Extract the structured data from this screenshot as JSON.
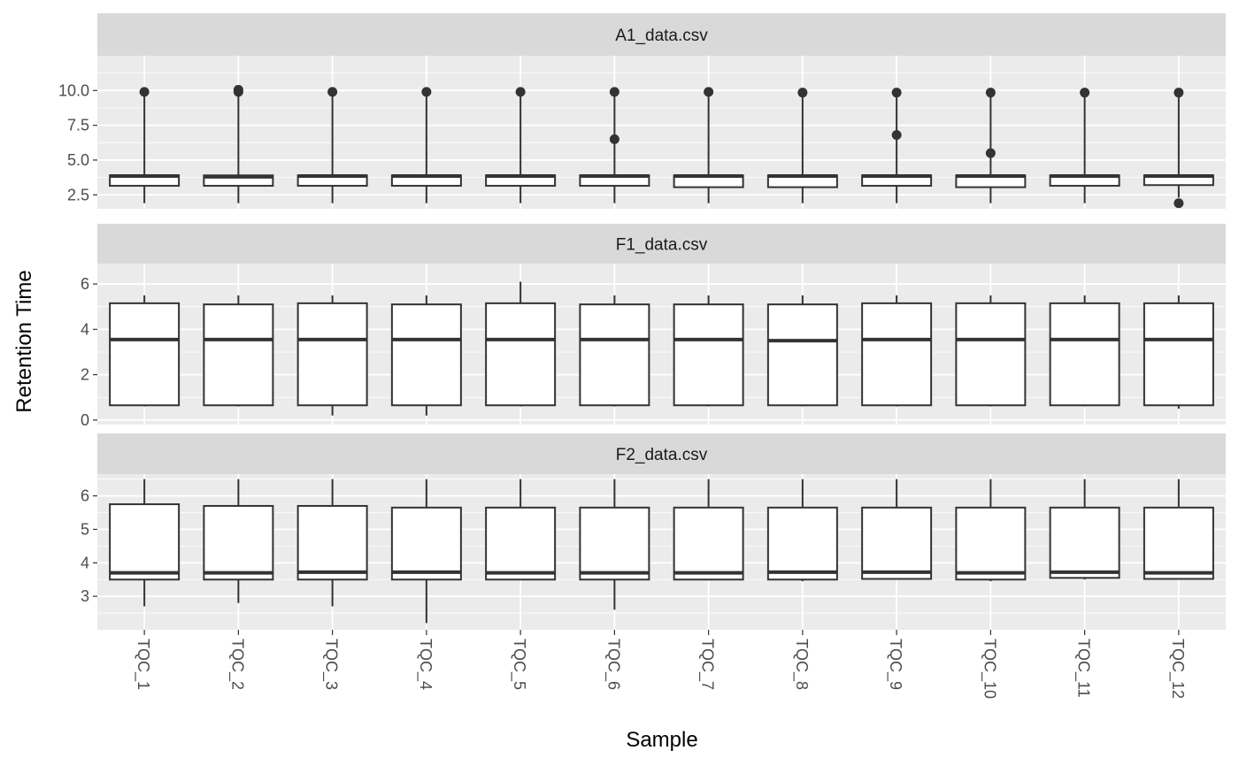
{
  "chart_data": {
    "type": "boxplot",
    "xlabel": "Sample",
    "ylabel": "Retention Time",
    "categories": [
      "TQC_1",
      "TQC_2",
      "TQC_3",
      "TQC_4",
      "TQC_5",
      "TQC_6",
      "TQC_7",
      "TQC_8",
      "TQC_9",
      "TQC_10",
      "TQC_11",
      "TQC_12"
    ],
    "facets": [
      {
        "title": "A1_data.csv",
        "ylim": [
          1.5,
          12.5
        ],
        "yticks": [
          2.5,
          5.0,
          7.5,
          10.0
        ],
        "yticklabels": [
          "2.5",
          "5.0",
          "7.5",
          "10.0"
        ],
        "boxes": [
          {
            "min": 1.9,
            "q1": 3.15,
            "median": 3.85,
            "q3": 3.9,
            "max": 9.9,
            "outliers": [
              9.9
            ]
          },
          {
            "min": 1.9,
            "q1": 3.15,
            "median": 3.8,
            "q3": 3.9,
            "max": 9.9,
            "outliers": [
              9.9,
              10.05
            ]
          },
          {
            "min": 1.9,
            "q1": 3.15,
            "median": 3.85,
            "q3": 3.9,
            "max": 9.9,
            "outliers": [
              9.9
            ]
          },
          {
            "min": 1.9,
            "q1": 3.15,
            "median": 3.85,
            "q3": 3.9,
            "max": 9.9,
            "outliers": [
              9.9
            ]
          },
          {
            "min": 1.9,
            "q1": 3.15,
            "median": 3.85,
            "q3": 3.9,
            "max": 9.9,
            "outliers": [
              9.9
            ]
          },
          {
            "min": 1.9,
            "q1": 3.15,
            "median": 3.85,
            "q3": 3.9,
            "max": 9.9,
            "outliers": [
              9.9,
              6.5
            ]
          },
          {
            "min": 1.9,
            "q1": 3.05,
            "median": 3.85,
            "q3": 3.9,
            "max": 9.9,
            "outliers": [
              9.9
            ]
          },
          {
            "min": 1.9,
            "q1": 3.05,
            "median": 3.85,
            "q3": 3.9,
            "max": 9.85,
            "outliers": [
              9.85
            ]
          },
          {
            "min": 1.9,
            "q1": 3.15,
            "median": 3.85,
            "q3": 3.9,
            "max": 9.85,
            "outliers": [
              9.85,
              6.8
            ]
          },
          {
            "min": 1.9,
            "q1": 3.05,
            "median": 3.85,
            "q3": 3.9,
            "max": 9.85,
            "outliers": [
              9.85,
              5.5
            ]
          },
          {
            "min": 1.9,
            "q1": 3.15,
            "median": 3.85,
            "q3": 3.9,
            "max": 9.85,
            "outliers": [
              9.85
            ]
          },
          {
            "min": 2.3,
            "q1": 3.2,
            "median": 3.85,
            "q3": 3.9,
            "max": 9.85,
            "outliers": [
              9.85,
              1.9
            ]
          }
        ]
      },
      {
        "title": "F1_data.csv",
        "ylim": [
          -0.2,
          6.9
        ],
        "yticks": [
          0,
          2,
          4,
          6
        ],
        "yticklabels": [
          "0",
          "2",
          "4",
          "6"
        ],
        "boxes": [
          {
            "min": 0.6,
            "q1": 0.65,
            "median": 3.55,
            "q3": 5.15,
            "max": 5.5,
            "outliers": []
          },
          {
            "min": 0.6,
            "q1": 0.65,
            "median": 3.55,
            "q3": 5.1,
            "max": 5.5,
            "outliers": []
          },
          {
            "min": 0.2,
            "q1": 0.65,
            "median": 3.55,
            "q3": 5.15,
            "max": 5.5,
            "outliers": []
          },
          {
            "min": 0.2,
            "q1": 0.65,
            "median": 3.55,
            "q3": 5.1,
            "max": 5.5,
            "outliers": []
          },
          {
            "min": 0.6,
            "q1": 0.65,
            "median": 3.55,
            "q3": 5.15,
            "max": 6.1,
            "outliers": []
          },
          {
            "min": 0.6,
            "q1": 0.65,
            "median": 3.55,
            "q3": 5.1,
            "max": 5.5,
            "outliers": []
          },
          {
            "min": 0.6,
            "q1": 0.65,
            "median": 3.55,
            "q3": 5.1,
            "max": 5.5,
            "outliers": []
          },
          {
            "min": 0.6,
            "q1": 0.65,
            "median": 3.5,
            "q3": 5.1,
            "max": 5.5,
            "outliers": []
          },
          {
            "min": 0.6,
            "q1": 0.65,
            "median": 3.55,
            "q3": 5.15,
            "max": 5.5,
            "outliers": []
          },
          {
            "min": 0.6,
            "q1": 0.65,
            "median": 3.55,
            "q3": 5.15,
            "max": 5.5,
            "outliers": []
          },
          {
            "min": 0.6,
            "q1": 0.65,
            "median": 3.55,
            "q3": 5.15,
            "max": 5.5,
            "outliers": []
          },
          {
            "min": 0.5,
            "q1": 0.65,
            "median": 3.55,
            "q3": 5.15,
            "max": 5.5,
            "outliers": []
          }
        ]
      },
      {
        "title": "F2_data.csv",
        "ylim": [
          2.0,
          6.65
        ],
        "yticks": [
          3,
          4,
          5,
          6
        ],
        "yticklabels": [
          "3",
          "4",
          "5",
          "6"
        ],
        "boxes": [
          {
            "min": 2.7,
            "q1": 3.5,
            "median": 3.7,
            "q3": 5.75,
            "max": 6.5,
            "outliers": []
          },
          {
            "min": 2.8,
            "q1": 3.5,
            "median": 3.7,
            "q3": 5.7,
            "max": 6.5,
            "outliers": []
          },
          {
            "min": 2.7,
            "q1": 3.5,
            "median": 3.72,
            "q3": 5.7,
            "max": 6.5,
            "outliers": []
          },
          {
            "min": 2.2,
            "q1": 3.5,
            "median": 3.72,
            "q3": 5.65,
            "max": 6.5,
            "outliers": []
          },
          {
            "min": 3.5,
            "q1": 3.5,
            "median": 3.7,
            "q3": 5.65,
            "max": 6.5,
            "outliers": []
          },
          {
            "min": 2.6,
            "q1": 3.5,
            "median": 3.7,
            "q3": 5.65,
            "max": 6.5,
            "outliers": []
          },
          {
            "min": 3.5,
            "q1": 3.5,
            "median": 3.7,
            "q3": 5.65,
            "max": 6.5,
            "outliers": []
          },
          {
            "min": 3.45,
            "q1": 3.5,
            "median": 3.72,
            "q3": 5.65,
            "max": 6.5,
            "outliers": []
          },
          {
            "min": 3.5,
            "q1": 3.52,
            "median": 3.72,
            "q3": 5.65,
            "max": 6.5,
            "outliers": []
          },
          {
            "min": 3.45,
            "q1": 3.5,
            "median": 3.7,
            "q3": 5.65,
            "max": 6.5,
            "outliers": []
          },
          {
            "min": 3.5,
            "q1": 3.55,
            "median": 3.72,
            "q3": 5.65,
            "max": 6.5,
            "outliers": []
          },
          {
            "min": 3.5,
            "q1": 3.52,
            "median": 3.7,
            "q3": 5.65,
            "max": 6.5,
            "outliers": []
          }
        ]
      }
    ],
    "colors": {
      "panel_bg": "#ebebeb",
      "strip_bg": "#d9d9d9",
      "grid": "#ffffff",
      "box_fill": "#ffffff",
      "box_stroke": "#333333",
      "outlier": "#333333"
    }
  }
}
